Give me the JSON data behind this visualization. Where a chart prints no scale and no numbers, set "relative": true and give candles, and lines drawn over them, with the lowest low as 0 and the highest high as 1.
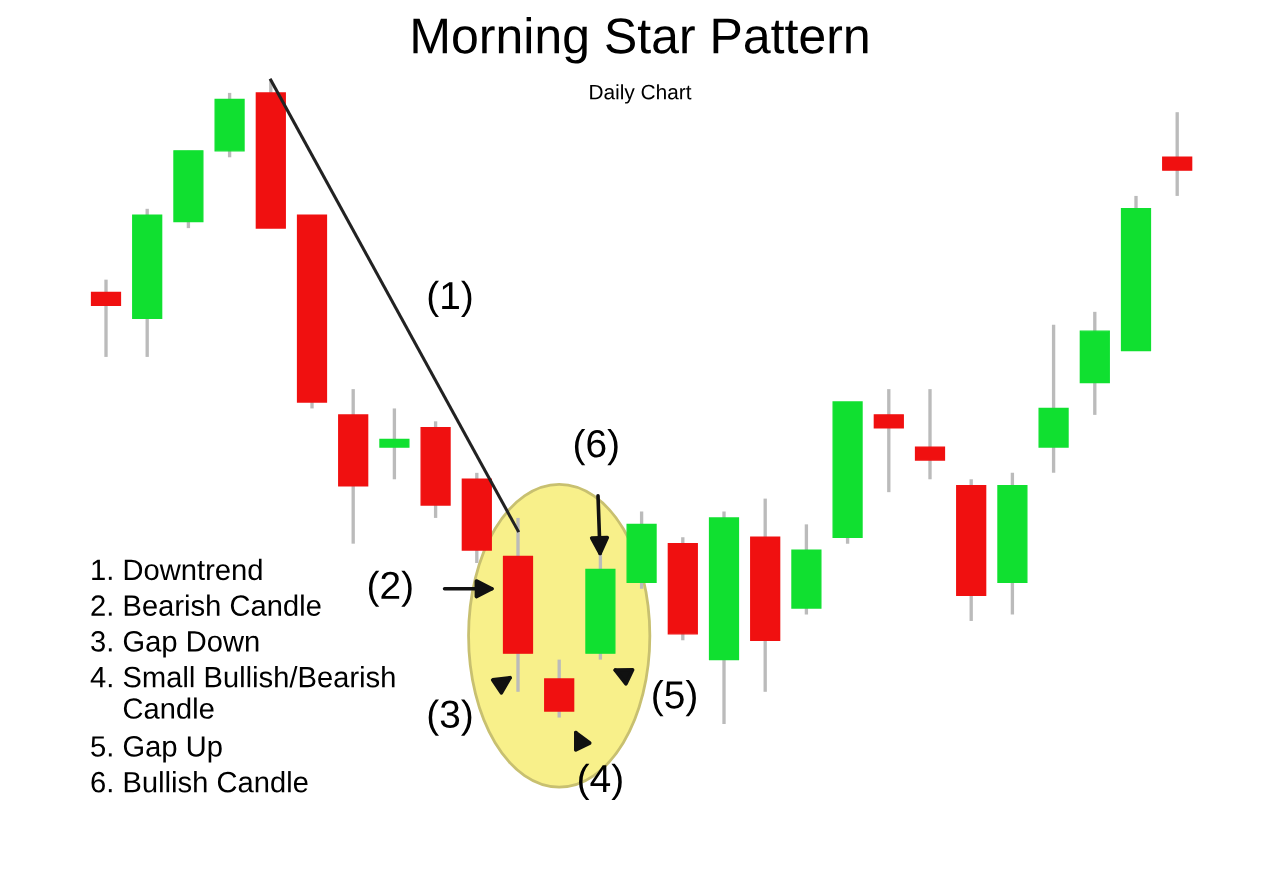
{
  "chart_data": {
    "type": "candlestick",
    "title": "Morning Star Pattern",
    "subtitle": "Daily Chart",
    "relative": true,
    "categories": [
      null,
      null,
      null,
      null,
      null,
      null,
      null,
      null,
      null,
      null,
      null,
      null,
      null,
      null,
      null,
      null,
      null,
      null,
      null,
      null,
      null,
      null,
      null,
      null,
      null,
      null,
      null
    ],
    "ohlc": [
      [
        0.67,
        0.69,
        0.57,
        0.65
      ],
      [
        0.63,
        0.8,
        0.57,
        0.79
      ],
      [
        0.78,
        0.89,
        0.77,
        0.89
      ],
      [
        0.89,
        0.98,
        0.88,
        0.97
      ],
      [
        0.98,
        1.0,
        0.77,
        0.77
      ],
      [
        0.79,
        0.79,
        0.49,
        0.5
      ],
      [
        0.48,
        0.52,
        0.28,
        0.37
      ],
      [
        0.43,
        0.49,
        0.38,
        0.44
      ],
      [
        0.46,
        0.47,
        0.32,
        0.34
      ],
      [
        0.38,
        0.39,
        0.25,
        0.27
      ],
      [
        0.26,
        0.32,
        0.05,
        0.11
      ],
      [
        0.07,
        0.1,
        0.01,
        0.02
      ],
      [
        0.11,
        0.29,
        0.1,
        0.24
      ],
      [
        0.22,
        0.33,
        0.21,
        0.31
      ],
      [
        0.28,
        0.29,
        0.13,
        0.14
      ],
      [
        0.1,
        0.33,
        0.0,
        0.32
      ],
      [
        0.29,
        0.35,
        0.05,
        0.13
      ],
      [
        0.18,
        0.31,
        0.17,
        0.27
      ],
      [
        0.29,
        0.5,
        0.28,
        0.5
      ],
      [
        0.48,
        0.52,
        0.36,
        0.46
      ],
      [
        0.43,
        0.52,
        0.38,
        0.41
      ],
      [
        0.37,
        0.38,
        0.16,
        0.2
      ],
      [
        0.22,
        0.39,
        0.17,
        0.37
      ],
      [
        0.43,
        0.62,
        0.39,
        0.49
      ],
      [
        0.53,
        0.64,
        0.48,
        0.61
      ],
      [
        0.58,
        0.82,
        0.58,
        0.8
      ],
      [
        0.88,
        0.95,
        0.82,
        0.86
      ]
    ],
    "colors": [
      "#f01010",
      "#10e030",
      "#10e030",
      "#10e030",
      "#f01010",
      "#f01010",
      "#f01010",
      "#10e030",
      "#f01010",
      "#f01010",
      "#f01010",
      "#f01010",
      "#10e030",
      "#10e030",
      "#f01010",
      "#10e030",
      "#f01010",
      "#10e030",
      "#10e030",
      "#f01010",
      "#f01010",
      "#f01010",
      "#10e030",
      "#10e030",
      "#10e030",
      "#10e030",
      "#f01010"
    ],
    "series": [
      {
        "type": "line",
        "color": "#222222",
        "values": [
          null,
          null,
          null,
          null,
          1.0,
          null,
          null,
          null,
          null,
          null,
          0.3,
          null,
          null,
          null,
          null,
          null,
          null,
          null,
          null,
          null,
          null,
          null,
          null,
          null,
          null,
          null,
          null
        ]
      }
    ],
    "annotations": [
      "(1)",
      "(2)",
      "(3)",
      "(4)",
      "(5)",
      "(6)",
      "1. Downtrend",
      "2. Bearish Candle",
      "3. Gap Down",
      "4. Small Bullish/Bearish Candle",
      "5. Gap Up",
      "6. Bullish Candle"
    ]
  }
}
